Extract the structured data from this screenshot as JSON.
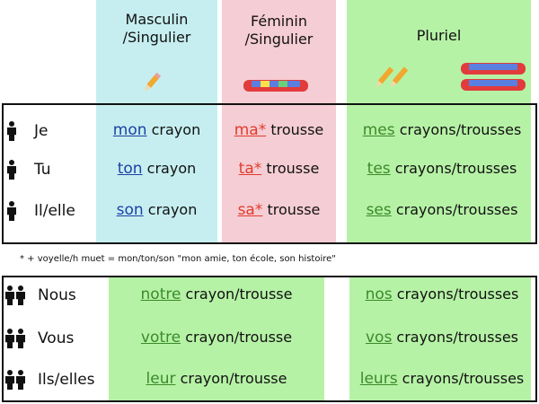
{
  "headers": {
    "masc": "Masculin /Singulier",
    "fem": "Féminin /Singulier",
    "plur": "Pluriel"
  },
  "colors": {
    "masc_bg": "#c6eef0",
    "fem_bg": "#f5cdd4",
    "plur_bg": "#b6f2a6",
    "masc_text": "#1d3fa6",
    "fem_text": "#e23b2b",
    "plur_text": "#3b8a2b"
  },
  "icons": [
    "pencil-icon",
    "pencil-case-icon",
    "person-icon"
  ],
  "singular_rows": [
    {
      "person": "Je",
      "masc": "mon",
      "masc_noun": "crayon",
      "fem": "ma*",
      "fem_noun": "trousse",
      "plur": "mes",
      "plur_noun": "crayons/trousses"
    },
    {
      "person": "Tu",
      "masc": "ton",
      "masc_noun": "crayon",
      "fem": "ta*",
      "fem_noun": "trousse",
      "plur": "tes",
      "plur_noun": "crayons/trousses"
    },
    {
      "person": "Il/elle",
      "masc": "son",
      "masc_noun": "crayon",
      "fem": "sa*",
      "fem_noun": "trousse",
      "plur": "ses",
      "plur_noun": "crayons/trousses"
    }
  ],
  "note": "* + voyelle/h muet = mon/ton/son \"mon amie,  ton école,  son histoire\"",
  "plural_rows": [
    {
      "person": "Nous",
      "sing": "notre",
      "sing_noun": "crayon/trousse",
      "plur": "nos",
      "plur_noun": "crayons/trousses"
    },
    {
      "person": "Vous",
      "sing": "votre",
      "sing_noun": "crayon/trousse",
      "plur": "vos",
      "plur_noun": "crayons/trousses"
    },
    {
      "person": "Ils/elles",
      "sing": "leur",
      "sing_noun": "crayon/trousse",
      "plur": "leurs",
      "plur_noun": "crayons/trousses"
    }
  ]
}
